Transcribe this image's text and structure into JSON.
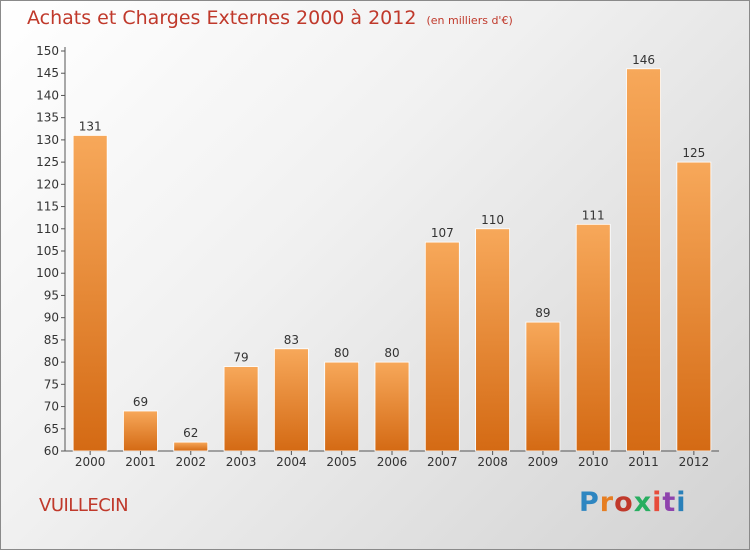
{
  "header": {
    "title": "Achats et Charges Externes 2000 à 2012",
    "unit": "(en milliers d'€)"
  },
  "footer": {
    "location": "VUILLECIN",
    "logo": "Proxiti"
  },
  "colors": {
    "bar_light": "#f7a85a",
    "bar_dark": "#d46a14",
    "title": "#c0392b",
    "logo": [
      "#2e86c1",
      "#e67e22",
      "#c0392b",
      "#27ae60",
      "#e74c3c",
      "#8e44ad",
      "#2980b9"
    ]
  },
  "chart_data": {
    "type": "bar",
    "title": "Achats et Charges Externes 2000 à 2012",
    "subtitle": "(en milliers d'€)",
    "categories": [
      "2000",
      "2001",
      "2002",
      "2003",
      "2004",
      "2005",
      "2006",
      "2007",
      "2008",
      "2009",
      "2010",
      "2011",
      "2012"
    ],
    "values": [
      131,
      69,
      62,
      79,
      83,
      80,
      80,
      107,
      110,
      89,
      111,
      146,
      125
    ],
    "ylim": [
      60,
      150
    ],
    "ytick_step": 5,
    "grid": false,
    "legend": "none",
    "xlabel": "",
    "ylabel": ""
  }
}
